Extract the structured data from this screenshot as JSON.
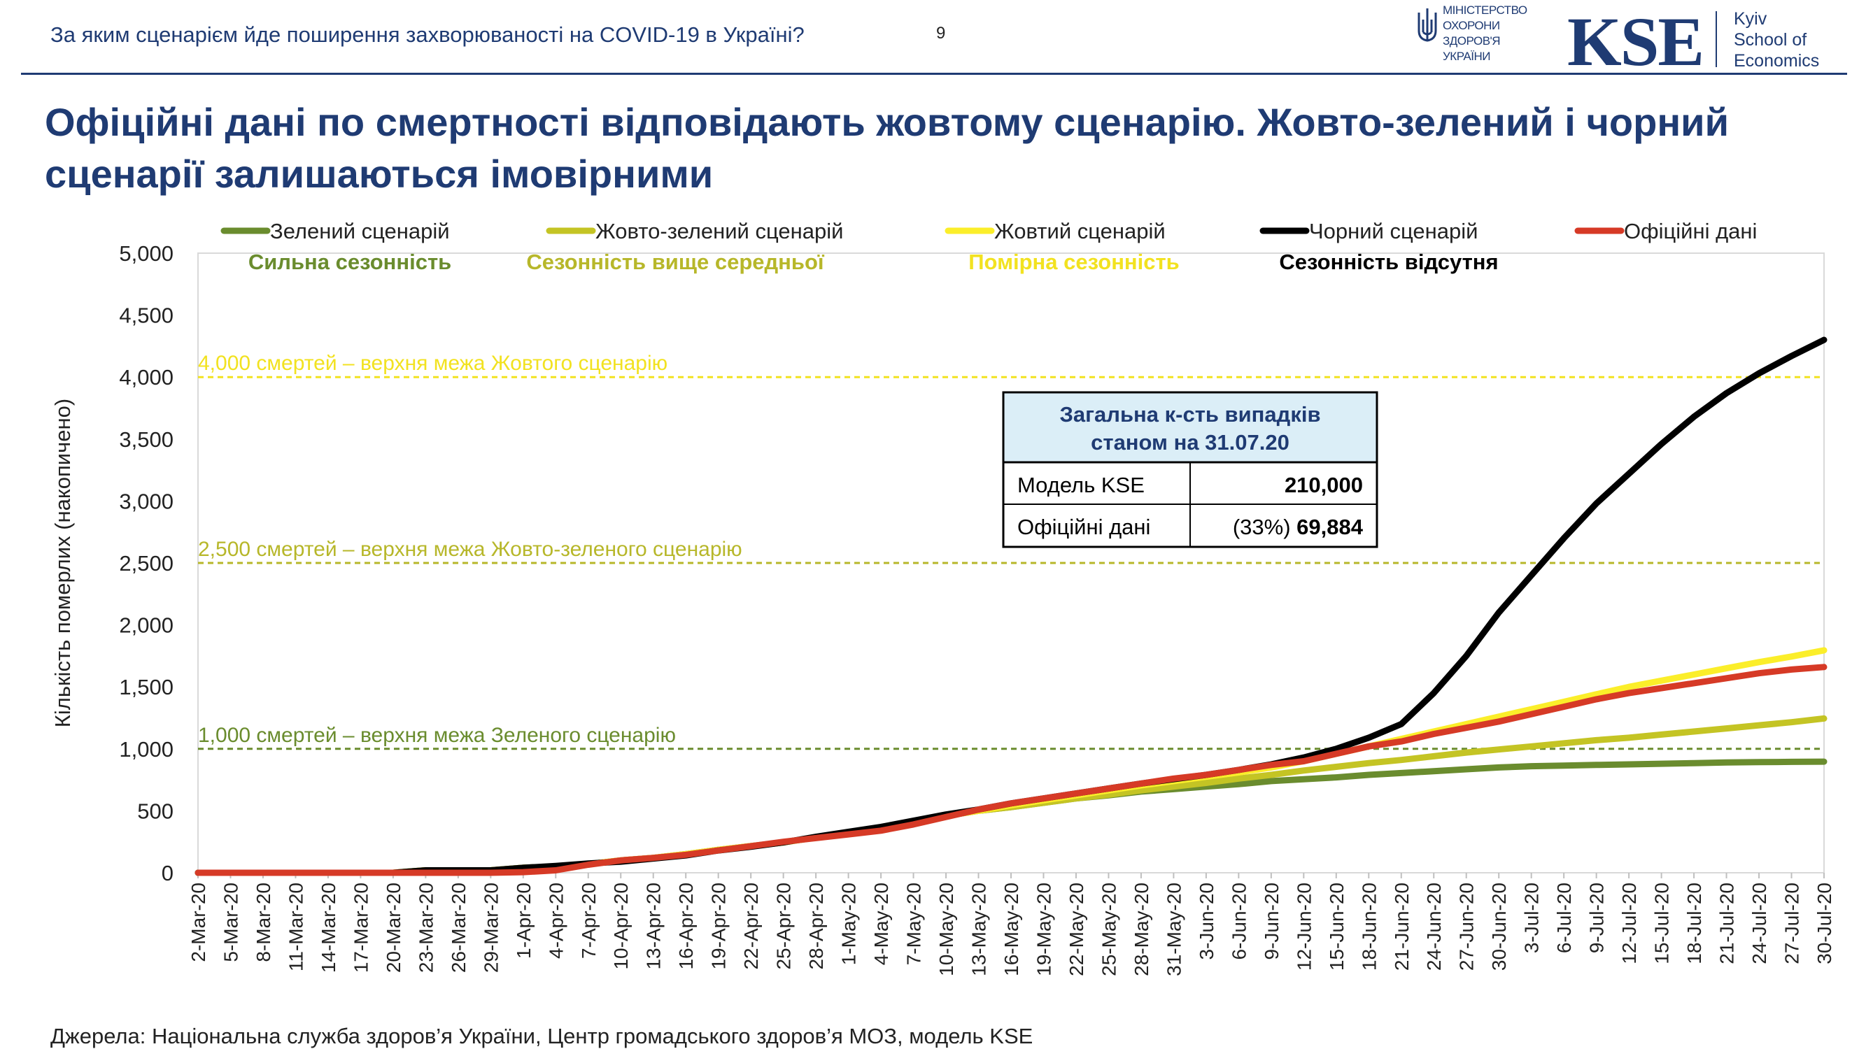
{
  "header": {
    "question": "За яким сценарієм йде поширення захворюваності на COVID-19 в Україні?",
    "page_number": "9",
    "moh_lines": [
      "МІНІСТЕРСТВО",
      "ОХОРОНИ",
      "ЗДОРОВ'Я",
      "УКРАЇНИ"
    ],
    "kse_logo": "KSE",
    "kse_sub": [
      "Kyiv",
      "School of",
      "Economics"
    ],
    "colors": {
      "brand": "#1f3b73"
    }
  },
  "title": "Офіційні дані по смертності відповідають жовтому сценарію. Жовто-зелений і чорний сценарії залишаються імовірними",
  "footer": "Джерела: Національна служба здоров’я України, Центр громадського здоров’я МОЗ, модель KSE",
  "legend": [
    {
      "label": "Зелений сценарій",
      "sub": "Сильна сезонність",
      "color": "#6a8c2e",
      "subcolor": "#6a8c2e"
    },
    {
      "label": "Жовто-зелений сценарій",
      "sub": "Сезонність вище середньої",
      "color": "#c4c424",
      "subcolor": "#b7b72a"
    },
    {
      "label": "Жовтий сценарій",
      "sub": "Помірна сезонність",
      "color": "#fbee2a",
      "subcolor": "#f2e220"
    },
    {
      "label": "Чорний сценарій",
      "sub": "Сезонність відсутня",
      "color": "#000000",
      "subcolor": "#000000"
    },
    {
      "label": "Офіційні дані",
      "sub": "",
      "color": "#d63a26",
      "subcolor": "#000000"
    }
  ],
  "table": {
    "header": "Загальна к-сть випадків станом на 31.07.20",
    "rows": [
      {
        "label": "Модель KSE",
        "pct": "",
        "value": "210,000"
      },
      {
        "label": "Офіційні дані",
        "pct": "(33%) ",
        "value": "69,884"
      }
    ]
  },
  "chart_data": {
    "type": "line",
    "ylabel": "Кількість померлих (накопичено)",
    "ylim": [
      0,
      5000
    ],
    "yticks": [
      "0",
      "500",
      "1,000",
      "1,500",
      "2,000",
      "2,500",
      "3,000",
      "3,500",
      "4,000",
      "4,500",
      "5,000"
    ],
    "grid": false,
    "categories": [
      "2-Mar-20",
      "5-Mar-20",
      "8-Mar-20",
      "11-Mar-20",
      "14-Mar-20",
      "17-Mar-20",
      "20-Mar-20",
      "23-Mar-20",
      "26-Mar-20",
      "29-Mar-20",
      "1-Apr-20",
      "4-Apr-20",
      "7-Apr-20",
      "10-Apr-20",
      "13-Apr-20",
      "16-Apr-20",
      "19-Apr-20",
      "22-Apr-20",
      "25-Apr-20",
      "28-Apr-20",
      "1-May-20",
      "4-May-20",
      "7-May-20",
      "10-May-20",
      "13-May-20",
      "16-May-20",
      "19-May-20",
      "22-May-20",
      "25-May-20",
      "28-May-20",
      "31-May-20",
      "3-Jun-20",
      "6-Jun-20",
      "9-Jun-20",
      "12-Jun-20",
      "15-Jun-20",
      "18-Jun-20",
      "21-Jun-20",
      "24-Jun-20",
      "27-Jun-20",
      "30-Jun-20",
      "3-Jul-20",
      "6-Jul-20",
      "9-Jul-20",
      "12-Jul-20",
      "15-Jul-20",
      "18-Jul-20",
      "21-Jul-20",
      "24-Jul-20",
      "27-Jul-20",
      "30-Jul-20"
    ],
    "reference_lines": [
      {
        "y": 4000,
        "label": "4,000 смертей – верхня межа Жовтого сценарію",
        "color": "#f2e220"
      },
      {
        "y": 2500,
        "label": "2,500 смертей – верхня межа Жовто-зеленого сценарію",
        "color": "#b7b72a"
      },
      {
        "y": 1000,
        "label": "1,000 смертей – верхня межа Зеленого сценарію",
        "color": "#6a8c2e"
      }
    ],
    "series": [
      {
        "name": "Зелений сценарій",
        "color": "#6a8c2e",
        "values": [
          0,
          0,
          0,
          0,
          0,
          0,
          0,
          20,
          20,
          20,
          40,
          50,
          70,
          100,
          120,
          150,
          185,
          215,
          245,
          285,
          325,
          355,
          405,
          460,
          500,
          530,
          565,
          600,
          625,
          655,
          675,
          695,
          715,
          740,
          755,
          770,
          790,
          805,
          820,
          835,
          850,
          860,
          865,
          870,
          875,
          880,
          885,
          890,
          893,
          895,
          897
        ]
      },
      {
        "name": "Жовто-зелений сценарій",
        "color": "#c4c424",
        "values": [
          0,
          0,
          0,
          0,
          0,
          0,
          0,
          20,
          20,
          20,
          40,
          50,
          70,
          100,
          120,
          150,
          185,
          215,
          245,
          285,
          325,
          355,
          405,
          460,
          500,
          530,
          565,
          600,
          630,
          665,
          695,
          725,
          760,
          790,
          825,
          855,
          885,
          910,
          940,
          970,
          995,
          1020,
          1045,
          1070,
          1090,
          1115,
          1140,
          1165,
          1190,
          1215,
          1245
        ]
      },
      {
        "name": "Жовтий сценарій",
        "color": "#fbee2a",
        "values": [
          0,
          0,
          0,
          0,
          0,
          0,
          0,
          20,
          20,
          20,
          40,
          50,
          70,
          100,
          120,
          150,
          185,
          215,
          245,
          285,
          325,
          355,
          405,
          460,
          500,
          545,
          585,
          625,
          665,
          705,
          740,
          775,
          810,
          850,
          900,
          960,
          1020,
          1080,
          1140,
          1200,
          1260,
          1320,
          1380,
          1440,
          1500,
          1550,
          1600,
          1650,
          1700,
          1745,
          1795
        ]
      },
      {
        "name": "Чорний сценарій",
        "color": "#000000",
        "values": [
          0,
          0,
          0,
          0,
          0,
          0,
          0,
          20,
          20,
          20,
          40,
          55,
          75,
          90,
          115,
          140,
          180,
          210,
          245,
          290,
          330,
          370,
          420,
          470,
          510,
          560,
          600,
          640,
          680,
          720,
          755,
          790,
          830,
          875,
          930,
          1000,
          1090,
          1200,
          1450,
          1750,
          2100,
          2400,
          2700,
          2980,
          3220,
          3460,
          3680,
          3870,
          4030,
          4170,
          4300
        ]
      },
      {
        "name": "Офіційні дані",
        "color": "#d63a26",
        "values": [
          0,
          0,
          0,
          0,
          0,
          0,
          0,
          0,
          0,
          0,
          5,
          20,
          65,
          100,
          120,
          145,
          180,
          215,
          250,
          280,
          310,
          340,
          390,
          450,
          510,
          560,
          600,
          640,
          680,
          720,
          760,
          790,
          830,
          870,
          900,
          960,
          1020,
          1060,
          1120,
          1170,
          1220,
          1280,
          1340,
          1400,
          1450,
          1490,
          1530,
          1570,
          1610,
          1640,
          1660
        ]
      }
    ]
  }
}
